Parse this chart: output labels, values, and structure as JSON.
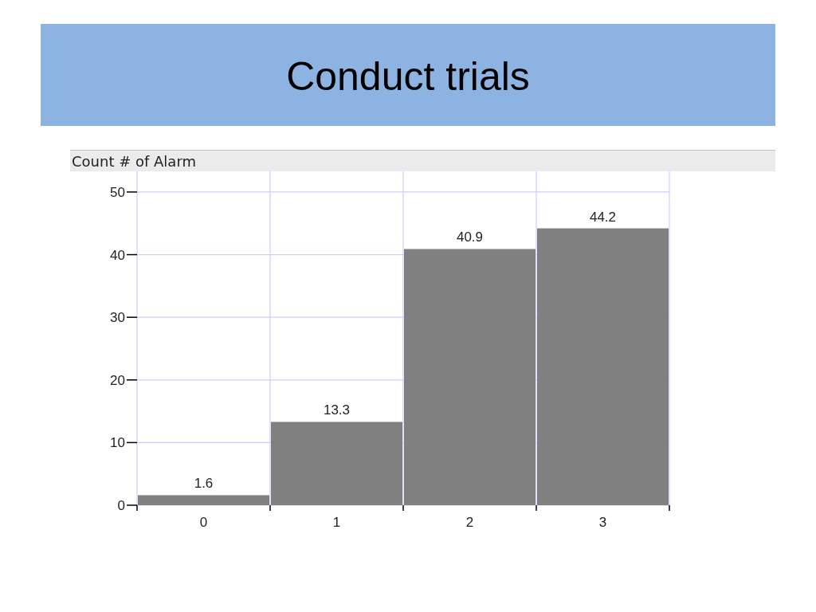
{
  "chart_data": {
    "type": "bar",
    "title": "Conduct trials",
    "ylabel": "Count # of Alarm",
    "categories": [
      "0",
      "1",
      "2",
      "3"
    ],
    "values": [
      1.6,
      13.3,
      40.9,
      44.2
    ],
    "color": "#808080",
    "ylim": [
      0,
      53.3
    ],
    "yticks": [
      0,
      10,
      20,
      30,
      40,
      50
    ],
    "grid": true,
    "data_labels": true
  }
}
